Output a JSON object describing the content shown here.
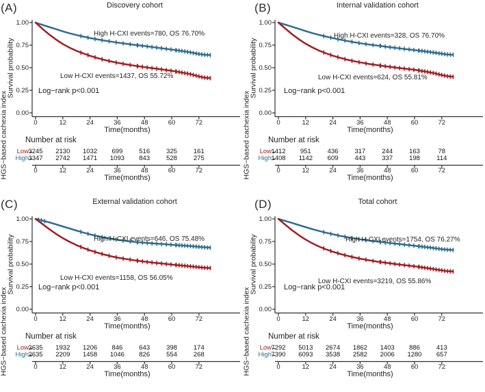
{
  "figure": {
    "strings": {
      "number_at_risk": "Number at risk",
      "time_axis_label": "Time(months)",
      "survival_axis_label": "Survival probability",
      "risk_group_axis_label": "HGS−based cachexia index",
      "low_label": "Low",
      "high_label": "High"
    },
    "colors": {
      "high": "#2e6d8e",
      "low": "#a01d22",
      "axis": "#2f2f2f"
    },
    "axes": {
      "y_ticks": [
        "1.00",
        "0.75",
        "0.50",
        "0.25",
        "0.00"
      ],
      "x_ticks": [
        "0",
        "12",
        "24",
        "36",
        "48",
        "60",
        "72"
      ]
    }
  },
  "chart_data": [
    {
      "type": "line",
      "panel": "(A)",
      "title": "Discovery cohort",
      "xlabel": "Time(months)",
      "ylabel": "Survival probability",
      "xlim": [
        0,
        84
      ],
      "ylim": [
        0,
        1
      ],
      "x_ticks": [
        0,
        12,
        24,
        36,
        48,
        60,
        72
      ],
      "y_ticks": [
        1.0,
        0.75,
        0.5,
        0.25,
        0.0
      ],
      "annotations": {
        "high": "High H-CXI events=780, OS 76.70%",
        "low": "Low H-CXI events=1437, OS 55.72%",
        "logrank": "Log−rank p<0.001"
      },
      "series": [
        {
          "name": "High",
          "color": "#2e6d8e",
          "points": [
            [
              0,
              1
            ],
            [
              3,
              0.975
            ],
            [
              6,
              0.951
            ],
            [
              9,
              0.927
            ],
            [
              12,
              0.903
            ],
            [
              15,
              0.881
            ],
            [
              18,
              0.862
            ],
            [
              21,
              0.845
            ],
            [
              24,
              0.829
            ],
            [
              27,
              0.815
            ],
            [
              30,
              0.802
            ],
            [
              33,
              0.79
            ],
            [
              36,
              0.779
            ],
            [
              40,
              0.765
            ],
            [
              44,
              0.752
            ],
            [
              48,
              0.74
            ],
            [
              52,
              0.727
            ],
            [
              56,
              0.714
            ],
            [
              60,
              0.701
            ],
            [
              64,
              0.687
            ],
            [
              68,
              0.671
            ],
            [
              72,
              0.652
            ],
            [
              74,
              0.645
            ],
            [
              77,
              0.64
            ]
          ]
        },
        {
          "name": "Low",
          "color": "#a01d22",
          "points": [
            [
              0,
              1
            ],
            [
              3,
              0.931
            ],
            [
              6,
              0.868
            ],
            [
              9,
              0.812
            ],
            [
              12,
              0.763
            ],
            [
              15,
              0.722
            ],
            [
              18,
              0.687
            ],
            [
              21,
              0.658
            ],
            [
              24,
              0.632
            ],
            [
              27,
              0.609
            ],
            [
              30,
              0.589
            ],
            [
              33,
              0.571
            ],
            [
              36,
              0.555
            ],
            [
              40,
              0.537
            ],
            [
              44,
              0.521
            ],
            [
              48,
              0.507
            ],
            [
              52,
              0.493
            ],
            [
              56,
              0.48
            ],
            [
              60,
              0.466
            ],
            [
              64,
              0.449
            ],
            [
              68,
              0.43
            ],
            [
              72,
              0.404
            ],
            [
              74,
              0.392
            ],
            [
              77,
              0.385
            ]
          ]
        }
      ],
      "number_at_risk": {
        "Low": [
          "3245",
          "2130",
          "1032",
          "699",
          "516",
          "325",
          "161"
        ],
        "High": [
          "3347",
          "2742",
          "1471",
          "1093",
          "843",
          "528",
          "275"
        ]
      }
    },
    {
      "type": "line",
      "panel": "(B)",
      "title": "Internal validation cohort",
      "xlabel": "Time(months)",
      "ylabel": "Survival probability",
      "xlim": [
        0,
        84
      ],
      "ylim": [
        0,
        1
      ],
      "x_ticks": [
        0,
        12,
        24,
        36,
        48,
        60,
        72
      ],
      "y_ticks": [
        1.0,
        0.75,
        0.5,
        0.25,
        0.0
      ],
      "annotations": {
        "high": "High H-CXI events=328, OS 76.70%",
        "low": "Low H-CXI events=624, OS 55.81%",
        "logrank": "Log−rank p<0.001"
      },
      "series": [
        {
          "name": "High",
          "color": "#2e6d8e",
          "points": [
            [
              0,
              1
            ],
            [
              3,
              0.977
            ],
            [
              6,
              0.954
            ],
            [
              9,
              0.93
            ],
            [
              12,
              0.906
            ],
            [
              15,
              0.883
            ],
            [
              18,
              0.863
            ],
            [
              21,
              0.845
            ],
            [
              24,
              0.828
            ],
            [
              27,
              0.812
            ],
            [
              30,
              0.798
            ],
            [
              33,
              0.784
            ],
            [
              36,
              0.771
            ],
            [
              40,
              0.757
            ],
            [
              44,
              0.744
            ],
            [
              48,
              0.731
            ],
            [
              52,
              0.719
            ],
            [
              56,
              0.707
            ],
            [
              60,
              0.695
            ],
            [
              64,
              0.683
            ],
            [
              68,
              0.67
            ],
            [
              72,
              0.655
            ],
            [
              74,
              0.648
            ],
            [
              77,
              0.643
            ]
          ]
        },
        {
          "name": "Low",
          "color": "#a01d22",
          "points": [
            [
              0,
              1
            ],
            [
              3,
              0.934
            ],
            [
              6,
              0.871
            ],
            [
              9,
              0.815
            ],
            [
              12,
              0.766
            ],
            [
              15,
              0.724
            ],
            [
              18,
              0.689
            ],
            [
              21,
              0.659
            ],
            [
              24,
              0.633
            ],
            [
              27,
              0.611
            ],
            [
              30,
              0.591
            ],
            [
              33,
              0.574
            ],
            [
              36,
              0.559
            ],
            [
              40,
              0.542
            ],
            [
              44,
              0.527
            ],
            [
              48,
              0.514
            ],
            [
              52,
              0.501
            ],
            [
              56,
              0.489
            ],
            [
              60,
              0.477
            ],
            [
              64,
              0.461
            ],
            [
              68,
              0.443
            ],
            [
              72,
              0.419
            ],
            [
              74,
              0.408
            ],
            [
              77,
              0.4
            ]
          ]
        }
      ],
      "number_at_risk": {
        "Low": [
          "1412",
          "951",
          "436",
          "317",
          "244",
          "163",
          "78"
        ],
        "High": [
          "1408",
          "1142",
          "609",
          "443",
          "337",
          "198",
          "114"
        ]
      }
    },
    {
      "type": "line",
      "panel": "(C)",
      "title": "External validation cohort",
      "xlabel": "Time(months)",
      "ylabel": "Survival probability",
      "xlim": [
        0,
        84
      ],
      "ylim": [
        0,
        1
      ],
      "x_ticks": [
        0,
        12,
        24,
        36,
        48,
        60,
        72
      ],
      "y_ticks": [
        1.0,
        0.75,
        0.5,
        0.25,
        0.0
      ],
      "annotations": {
        "high": "High H-CXI events=646, OS 75.48%",
        "low": "Low H-CXI events=1158, OS 56.05%",
        "logrank": "Log−rank p<0.001"
      },
      "series": [
        {
          "name": "High",
          "color": "#2e6d8e",
          "points": [
            [
              0,
              1
            ],
            [
              3,
              0.982
            ],
            [
              6,
              0.962
            ],
            [
              9,
              0.94
            ],
            [
              12,
              0.917
            ],
            [
              15,
              0.894
            ],
            [
              18,
              0.871
            ],
            [
              21,
              0.849
            ],
            [
              24,
              0.829
            ],
            [
              27,
              0.811
            ],
            [
              30,
              0.795
            ],
            [
              33,
              0.781
            ],
            [
              36,
              0.769
            ],
            [
              40,
              0.756
            ],
            [
              44,
              0.745
            ],
            [
              48,
              0.736
            ],
            [
              52,
              0.728
            ],
            [
              56,
              0.721
            ],
            [
              60,
              0.714
            ],
            [
              64,
              0.707
            ],
            [
              68,
              0.7
            ],
            [
              72,
              0.691
            ],
            [
              74,
              0.686
            ],
            [
              77,
              0.682
            ]
          ]
        },
        {
          "name": "Low",
          "color": "#a01d22",
          "points": [
            [
              0,
              1
            ],
            [
              3,
              0.944
            ],
            [
              6,
              0.887
            ],
            [
              9,
              0.834
            ],
            [
              12,
              0.787
            ],
            [
              15,
              0.746
            ],
            [
              18,
              0.71
            ],
            [
              21,
              0.679
            ],
            [
              24,
              0.652
            ],
            [
              27,
              0.628
            ],
            [
              30,
              0.607
            ],
            [
              33,
              0.588
            ],
            [
              36,
              0.572
            ],
            [
              40,
              0.555
            ],
            [
              44,
              0.54
            ],
            [
              48,
              0.527
            ],
            [
              52,
              0.515
            ],
            [
              56,
              0.505
            ],
            [
              60,
              0.495
            ],
            [
              64,
              0.485
            ],
            [
              68,
              0.476
            ],
            [
              72,
              0.465
            ],
            [
              74,
              0.46
            ],
            [
              77,
              0.457
            ]
          ]
        }
      ],
      "number_at_risk": {
        "Low": [
          "2635",
          "1932",
          "1206",
          "846",
          "643",
          "398",
          "174"
        ],
        "High": [
          "2635",
          "2209",
          "1458",
          "1046",
          "826",
          "554",
          "268"
        ]
      }
    },
    {
      "type": "line",
      "panel": "(D)",
      "title": "Total cohort",
      "xlabel": "Time(months)",
      "ylabel": "Survival probability",
      "xlim": [
        0,
        84
      ],
      "ylim": [
        0,
        1
      ],
      "x_ticks": [
        0,
        12,
        24,
        36,
        48,
        60,
        72
      ],
      "y_ticks": [
        1.0,
        0.75,
        0.5,
        0.25,
        0.0
      ],
      "annotations": {
        "high": "High H-CXI events=1754, OS 76.27%",
        "low": "Low H-CXI events=3219, OS 55.86%",
        "logrank": "Log−rank p<0.001"
      },
      "series": [
        {
          "name": "High",
          "color": "#2e6d8e",
          "points": [
            [
              0,
              1
            ],
            [
              3,
              0.978
            ],
            [
              6,
              0.956
            ],
            [
              9,
              0.932
            ],
            [
              12,
              0.909
            ],
            [
              15,
              0.886
            ],
            [
              18,
              0.866
            ],
            [
              21,
              0.847
            ],
            [
              24,
              0.83
            ],
            [
              27,
              0.814
            ],
            [
              30,
              0.799
            ],
            [
              33,
              0.786
            ],
            [
              36,
              0.774
            ],
            [
              40,
              0.76
            ],
            [
              44,
              0.748
            ],
            [
              48,
              0.736
            ],
            [
              52,
              0.725
            ],
            [
              56,
              0.714
            ],
            [
              60,
              0.703
            ],
            [
              64,
              0.691
            ],
            [
              68,
              0.679
            ],
            [
              72,
              0.665
            ],
            [
              74,
              0.66
            ],
            [
              77,
              0.656
            ]
          ]
        },
        {
          "name": "Low",
          "color": "#a01d22",
          "points": [
            [
              0,
              1
            ],
            [
              3,
              0.936
            ],
            [
              6,
              0.875
            ],
            [
              9,
              0.82
            ],
            [
              12,
              0.771
            ],
            [
              15,
              0.729
            ],
            [
              18,
              0.693
            ],
            [
              21,
              0.663
            ],
            [
              24,
              0.637
            ],
            [
              27,
              0.614
            ],
            [
              30,
              0.594
            ],
            [
              33,
              0.576
            ],
            [
              36,
              0.56
            ],
            [
              40,
              0.542
            ],
            [
              44,
              0.526
            ],
            [
              48,
              0.512
            ],
            [
              52,
              0.499
            ],
            [
              56,
              0.487
            ],
            [
              60,
              0.475
            ],
            [
              64,
              0.461
            ],
            [
              68,
              0.446
            ],
            [
              72,
              0.43
            ],
            [
              74,
              0.423
            ],
            [
              77,
              0.418
            ]
          ]
        }
      ],
      "number_at_risk": {
        "Low": [
          "7292",
          "5013",
          "2674",
          "1862",
          "1403",
          "886",
          "413"
        ],
        "High": [
          "7390",
          "6093",
          "3538",
          "2582",
          "2006",
          "1280",
          "657"
        ]
      }
    }
  ]
}
